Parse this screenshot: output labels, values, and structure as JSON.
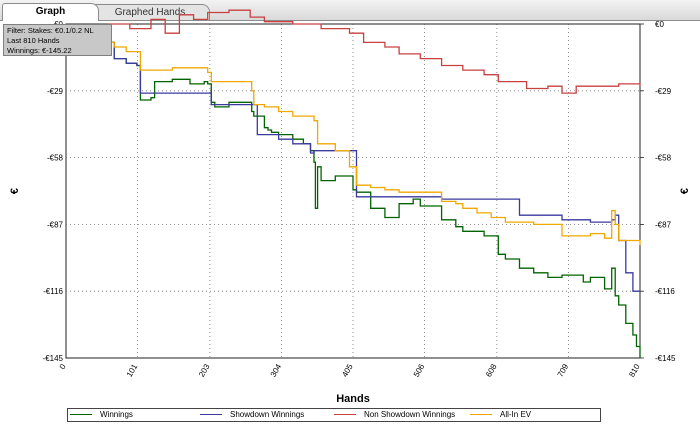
{
  "tabs": [
    {
      "label": "Graph",
      "active": true
    },
    {
      "label": "Graphed Hands",
      "active": false
    }
  ],
  "filter_box": {
    "line1": "Filter: Stakes: €0.1/0.2 NL",
    "line2": "Last  810 Hands",
    "line3": "Winnings: €-145.22"
  },
  "colors": {
    "winnings": "#006400",
    "showdown": "#3a3aa0",
    "non_showdown": "#c84040",
    "allin_ev": "#f0a800"
  },
  "chart_data": {
    "type": "line",
    "title": "",
    "xlabel": "Hands",
    "ylabel": "€",
    "xlim": [
      0,
      810
    ],
    "ylim": [
      -145,
      0
    ],
    "x_ticks": [
      0,
      101,
      203,
      304,
      405,
      506,
      608,
      709,
      810
    ],
    "y_ticks": [
      {
        "value": 0,
        "label": "€0"
      },
      {
        "value": -29,
        "label": "-€29"
      },
      {
        "value": -58,
        "label": "-€58"
      },
      {
        "value": -87,
        "label": "-€87"
      },
      {
        "value": -116,
        "label": "-€116"
      },
      {
        "value": -145,
        "label": "-€145"
      }
    ],
    "grid": true,
    "legend_position": "bottom",
    "series": [
      {
        "name": "Winnings",
        "color_key": "winnings",
        "x": [
          0,
          45,
          65,
          68,
          85,
          100,
          105,
          120,
          125,
          150,
          170,
          175,
          195,
          200,
          205,
          210,
          230,
          250,
          262,
          265,
          280,
          285,
          290,
          300,
          320,
          335,
          345,
          350,
          352,
          355,
          360,
          380,
          405,
          410,
          430,
          450,
          470,
          490,
          500,
          530,
          550,
          560,
          590,
          610,
          620,
          640,
          660,
          680,
          700,
          730,
          740,
          760,
          770,
          775,
          780,
          790,
          800,
          805,
          810
        ],
        "y": [
          -8,
          -8,
          -8,
          -15,
          -17,
          -18,
          -33,
          -32,
          -25,
          -24,
          -24,
          -26,
          -25,
          -26,
          -34,
          -36,
          -34,
          -34,
          -38,
          -40,
          -45,
          -46,
          -47,
          -48,
          -50,
          -52,
          -55,
          -60,
          -80,
          -62,
          -68,
          -66,
          -72,
          -73,
          -80,
          -84,
          -78,
          -76,
          -79,
          -85,
          -88,
          -90,
          -92,
          -100,
          -102,
          -106,
          -108,
          -110,
          -109,
          -112,
          -110,
          -115,
          -106,
          -118,
          -122,
          -130,
          -135,
          -140,
          -145
        ]
      },
      {
        "name": "Showdown Winnings",
        "color_key": "showdown",
        "x": [
          0,
          45,
          65,
          68,
          85,
          100,
          105,
          200,
          205,
          270,
          300,
          320,
          345,
          350,
          410,
          420,
          500,
          530,
          640,
          700,
          740,
          770,
          775,
          780,
          790,
          800,
          810
        ],
        "y": [
          -8,
          -8,
          -8,
          -15,
          -17,
          -18,
          -30,
          -30,
          -35,
          -48,
          -50,
          -52,
          -56,
          -55,
          -75,
          -75,
          -75,
          -76,
          -83,
          -85,
          -86,
          -85,
          -83,
          -94,
          -108,
          -116,
          -116
        ]
      },
      {
        "name": "Non Showdown Winnings",
        "color_key": "non_showdown",
        "x": [
          0,
          50,
          60,
          90,
          120,
          140,
          160,
          180,
          200,
          230,
          260,
          280,
          320,
          360,
          400,
          420,
          450,
          470,
          500,
          530,
          560,
          590,
          610,
          650,
          680,
          700,
          720,
          750,
          780,
          810
        ],
        "y": [
          -4,
          -4,
          0,
          -2,
          2,
          -4,
          4,
          2,
          5,
          6,
          3,
          1,
          0,
          -2,
          -4,
          -8,
          -10,
          -13,
          -15,
          -18,
          -20,
          -22,
          -25,
          -28,
          -27,
          -30,
          -27,
          -27,
          -26,
          -27
        ]
      },
      {
        "name": "All-In EV",
        "color_key": "allin_ev",
        "x": [
          0,
          45,
          65,
          68,
          85,
          100,
          105,
          150,
          175,
          200,
          205,
          250,
          262,
          265,
          280,
          300,
          320,
          345,
          350,
          355,
          380,
          400,
          410,
          430,
          450,
          470,
          500,
          530,
          550,
          560,
          580,
          600,
          620,
          640,
          660,
          680,
          700,
          720,
          740,
          760,
          770,
          775,
          780,
          790,
          810
        ],
        "y": [
          -8,
          -8,
          -8,
          -10,
          -12,
          -12,
          -20,
          -19,
          -19,
          -21,
          -25,
          -25,
          -29,
          -35,
          -36,
          -38,
          -40,
          -40,
          -42,
          -52,
          -55,
          -62,
          -70,
          -71,
          -72,
          -73,
          -73,
          -77,
          -78,
          -80,
          -82,
          -84,
          -86,
          -86,
          -87,
          -87,
          -92,
          -92,
          -91,
          -93,
          -81,
          -87,
          -94,
          -94,
          -96
        ]
      }
    ]
  }
}
